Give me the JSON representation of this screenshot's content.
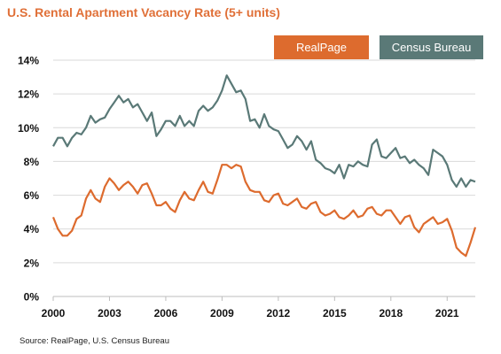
{
  "title": "U.S. Rental Apartment Vacancy Rate (5+ units)",
  "source": "Source: RealPage, U.S. Census Bureau",
  "colors": {
    "title": "#e07038",
    "realpage": "#dd6b2e",
    "census": "#5a7977"
  },
  "chart_data": {
    "type": "line",
    "title": "U.S. Rental Apartment Vacancy Rate (5+ units)",
    "xlabel": "",
    "ylabel": "",
    "xlim": [
      2000,
      2022.5
    ],
    "ylim": [
      0,
      14
    ],
    "x_ticks": [
      "2000",
      "2003",
      "2006",
      "2009",
      "2012",
      "2015",
      "2018",
      "2021"
    ],
    "y_ticks": [
      "0%",
      "2%",
      "4%",
      "6%",
      "8%",
      "10%",
      "12%",
      "14%"
    ],
    "legend_position": "top-right",
    "grid": "horizontal",
    "series": [
      {
        "name": "RealPage",
        "color": "#dd6b2e",
        "x": [
          2000,
          2000.25,
          2000.5,
          2000.75,
          2001,
          2001.25,
          2001.5,
          2001.75,
          2002,
          2002.25,
          2002.5,
          2002.75,
          2003,
          2003.25,
          2003.5,
          2003.75,
          2004,
          2004.25,
          2004.5,
          2004.75,
          2005,
          2005.25,
          2005.5,
          2005.75,
          2006,
          2006.25,
          2006.5,
          2006.75,
          2007,
          2007.25,
          2007.5,
          2007.75,
          2008,
          2008.25,
          2008.5,
          2008.75,
          2009,
          2009.25,
          2009.5,
          2009.75,
          2010,
          2010.25,
          2010.5,
          2010.75,
          2011,
          2011.25,
          2011.5,
          2011.75,
          2012,
          2012.25,
          2012.5,
          2012.75,
          2013,
          2013.25,
          2013.5,
          2013.75,
          2014,
          2014.25,
          2014.5,
          2014.75,
          2015,
          2015.25,
          2015.5,
          2015.75,
          2016,
          2016.25,
          2016.5,
          2016.75,
          2017,
          2017.25,
          2017.5,
          2017.75,
          2018,
          2018.25,
          2018.5,
          2018.75,
          2019,
          2019.25,
          2019.5,
          2019.75,
          2020,
          2020.25,
          2020.5,
          2020.75,
          2021,
          2021.25,
          2021.5,
          2021.75,
          2022,
          2022.25,
          2022.5
        ],
        "values": [
          4.7,
          4.0,
          3.6,
          3.6,
          3.9,
          4.6,
          4.8,
          5.8,
          6.3,
          5.8,
          5.6,
          6.5,
          7.0,
          6.7,
          6.3,
          6.6,
          6.8,
          6.5,
          6.1,
          6.6,
          6.7,
          6.1,
          5.4,
          5.4,
          5.6,
          5.2,
          5.0,
          5.7,
          6.2,
          5.8,
          5.7,
          6.3,
          6.8,
          6.2,
          6.1,
          6.9,
          7.8,
          7.8,
          7.6,
          7.8,
          7.7,
          6.8,
          6.3,
          6.2,
          6.2,
          5.7,
          5.6,
          6.0,
          6.1,
          5.5,
          5.4,
          5.6,
          5.8,
          5.3,
          5.2,
          5.5,
          5.6,
          5.0,
          4.8,
          4.9,
          5.1,
          4.7,
          4.6,
          4.8,
          5.1,
          4.7,
          4.8,
          5.2,
          5.3,
          4.9,
          4.8,
          5.1,
          5.1,
          4.7,
          4.3,
          4.7,
          4.8,
          4.1,
          3.8,
          4.3,
          4.5,
          4.7,
          4.3,
          4.4,
          4.6,
          3.9,
          2.9,
          2.6,
          2.4,
          3.2,
          4.1
        ]
      },
      {
        "name": "Census Bureau",
        "color": "#5a7977",
        "x": [
          2000,
          2000.25,
          2000.5,
          2000.75,
          2001,
          2001.25,
          2001.5,
          2001.75,
          2002,
          2002.25,
          2002.5,
          2002.75,
          2003,
          2003.25,
          2003.5,
          2003.75,
          2004,
          2004.25,
          2004.5,
          2004.75,
          2005,
          2005.25,
          2005.5,
          2005.75,
          2006,
          2006.25,
          2006.5,
          2006.75,
          2007,
          2007.25,
          2007.5,
          2007.75,
          2008,
          2008.25,
          2008.5,
          2008.75,
          2009,
          2009.25,
          2009.5,
          2009.75,
          2010,
          2010.25,
          2010.5,
          2010.75,
          2011,
          2011.25,
          2011.5,
          2011.75,
          2012,
          2012.25,
          2012.5,
          2012.75,
          2013,
          2013.25,
          2013.5,
          2013.75,
          2014,
          2014.25,
          2014.5,
          2014.75,
          2015,
          2015.25,
          2015.5,
          2015.75,
          2016,
          2016.25,
          2016.5,
          2016.75,
          2017,
          2017.25,
          2017.5,
          2017.75,
          2018,
          2018.25,
          2018.5,
          2018.75,
          2019,
          2019.25,
          2019.5,
          2019.75,
          2020,
          2020.25,
          2020.5,
          2020.75,
          2021,
          2021.25,
          2021.5,
          2021.75,
          2022,
          2022.25,
          2022.5
        ],
        "values": [
          8.9,
          9.4,
          9.4,
          8.9,
          9.4,
          9.7,
          9.6,
          10.0,
          10.7,
          10.3,
          10.5,
          10.6,
          11.1,
          11.5,
          11.9,
          11.5,
          11.7,
          11.2,
          11.4,
          10.9,
          10.4,
          10.9,
          9.5,
          9.9,
          10.4,
          10.4,
          10.1,
          10.7,
          10.1,
          10.4,
          10.1,
          11.0,
          11.3,
          11.0,
          11.2,
          11.6,
          12.2,
          13.1,
          12.6,
          12.1,
          12.2,
          11.7,
          10.4,
          10.5,
          10.0,
          10.8,
          10.1,
          9.9,
          9.8,
          9.3,
          8.8,
          9.0,
          9.5,
          9.2,
          8.7,
          9.2,
          8.1,
          7.9,
          7.6,
          7.5,
          7.3,
          7.8,
          7.0,
          7.8,
          7.7,
          8.0,
          7.8,
          7.7,
          9.0,
          9.3,
          8.3,
          8.2,
          8.5,
          8.8,
          8.2,
          8.3,
          7.9,
          8.1,
          7.8,
          7.6,
          7.2,
          8.7,
          8.5,
          8.3,
          7.8,
          6.9,
          6.5,
          7.0,
          6.5,
          6.9,
          6.8
        ]
      }
    ]
  }
}
